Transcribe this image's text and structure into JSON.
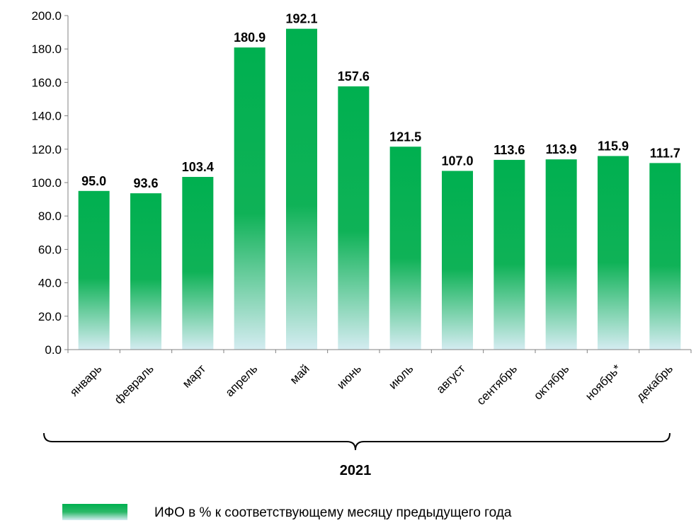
{
  "chart_data": {
    "type": "bar",
    "categories": [
      "январь",
      "февраль",
      "март",
      "апрель",
      "май",
      "июнь",
      "июль",
      "август",
      "сентябрь",
      "октябрь",
      "ноябрь*",
      "декабрь"
    ],
    "series": [
      {
        "name": "ИФО в % к соответствующему месяцу предыдущего года",
        "values": [
          95.0,
          93.6,
          103.4,
          180.9,
          192.1,
          157.6,
          121.5,
          107.0,
          113.6,
          113.9,
          115.9,
          111.7
        ],
        "color_top": "#00b050",
        "color_bottom": "#cfe9ee"
      }
    ],
    "y_ticks": [
      "0.0",
      "20.0",
      "40.0",
      "60.0",
      "80.0",
      "100.0",
      "120.0",
      "140.0",
      "160.0",
      "180.0",
      "200.0"
    ],
    "ylim": [
      0,
      200
    ],
    "group_label": "2021",
    "legend_position": "bottom",
    "grid": false
  }
}
